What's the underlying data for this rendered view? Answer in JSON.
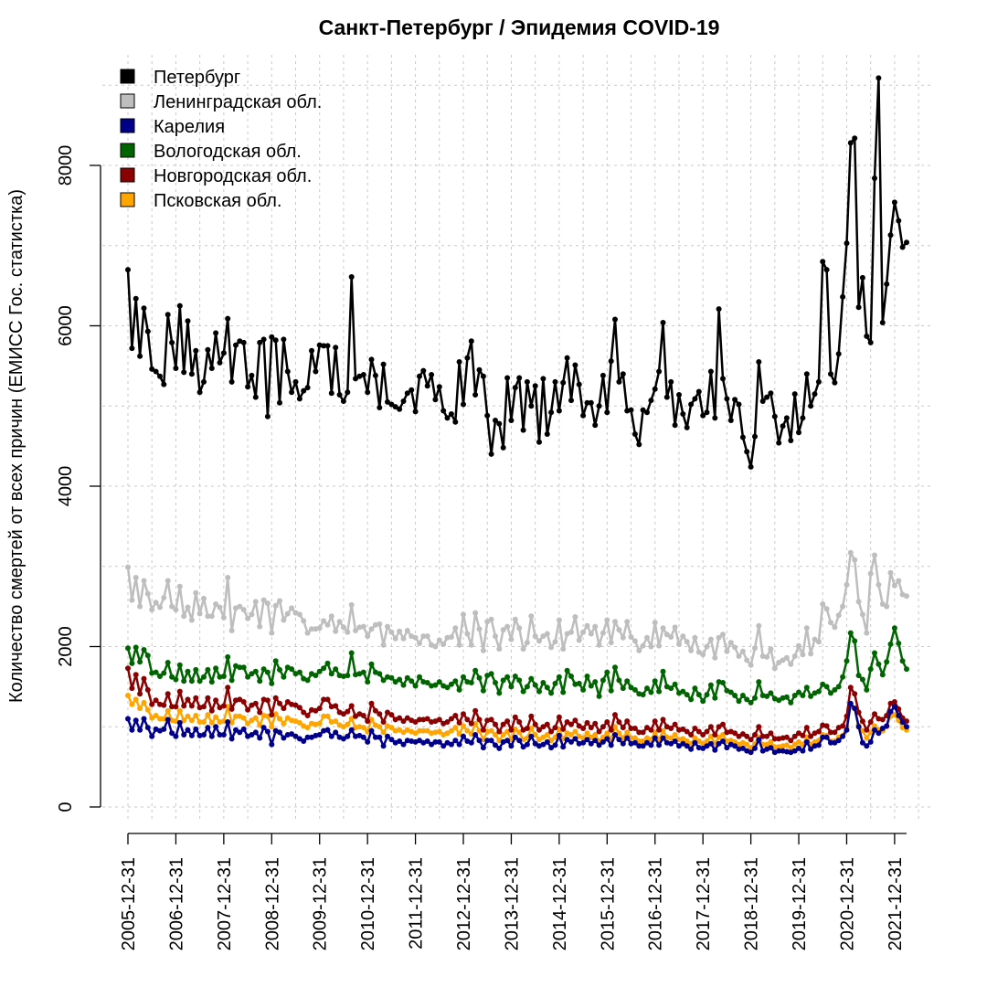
{
  "chart_data": {
    "type": "line",
    "title": "Санкт-Петербург / Эпидемия COVID-19",
    "ylabel": "Количество смертей от всех причин (ЕМИСС Гос. статистка)",
    "xlabel": "",
    "x_start": "2006-01",
    "x_end": "2022-04",
    "ylim": [
      0,
      9200
    ],
    "y_ticks": [
      0,
      2000,
      4000,
      6000,
      8000
    ],
    "x_tick_labels": [
      "2005-12-31",
      "2006-12-31",
      "2007-12-31",
      "2008-12-31",
      "2009-12-31",
      "2010-12-31",
      "2011-12-31",
      "2012-12-31",
      "2013-12-31",
      "2014-12-31",
      "2015-12-31",
      "2016-12-31",
      "2017-12-31",
      "2018-12-31",
      "2019-12-31",
      "2020-12-31",
      "2021-12-31"
    ],
    "grid": true,
    "legend_position": "top-left",
    "series": [
      {
        "name": "Петербург",
        "color": "#000000",
        "values": [
          6700,
          5720,
          6340,
          5620,
          6220,
          5930,
          5460,
          5430,
          5370,
          5270,
          6140,
          5790,
          5470,
          6250,
          5420,
          6060,
          5400,
          5690,
          5170,
          5300,
          5700,
          5470,
          5910,
          5540,
          5660,
          6090,
          5300,
          5760,
          5810,
          5790,
          5240,
          5380,
          5110,
          5790,
          5830,
          4870,
          5860,
          5820,
          5040,
          5830,
          5430,
          5170,
          5300,
          5090,
          5190,
          5230,
          5690,
          5430,
          5760,
          5750,
          5750,
          5160,
          5730,
          5140,
          5060,
          5170,
          6610,
          5340,
          5370,
          5390,
          5170,
          5580,
          5380,
          4980,
          5520,
          5050,
          5020,
          4990,
          4960,
          5060,
          5160,
          5200,
          4930,
          5370,
          5440,
          5250,
          5390,
          5080,
          5240,
          4940,
          4850,
          4900,
          4800,
          5550,
          5020,
          5600,
          5810,
          5140,
          5450,
          5370,
          4880,
          4400,
          4820,
          4780,
          4480,
          5350,
          4820,
          5230,
          5350,
          4700,
          5300,
          5000,
          5250,
          4550,
          5340,
          4650,
          4920,
          5300,
          4940,
          5290,
          5600,
          5070,
          5510,
          5270,
          4880,
          5040,
          5040,
          4760,
          5000,
          5380,
          4920,
          5560,
          6080,
          5300,
          5400,
          4940,
          4950,
          4650,
          4520,
          4950,
          4920,
          5070,
          5210,
          5430,
          6040,
          5110,
          5300,
          4760,
          5140,
          4900,
          4730,
          5020,
          5090,
          5180,
          4880,
          4920,
          5430,
          4850,
          6210,
          5340,
          5090,
          4820,
          5080,
          5020,
          4610,
          4430,
          4240,
          4620,
          5550,
          5060,
          5110,
          5160,
          4870,
          4540,
          4750,
          4850,
          4570,
          5150,
          4670,
          4850,
          5400,
          5000,
          5150,
          5300,
          6800,
          6700,
          5400,
          5290,
          5650,
          6360,
          7030,
          8280,
          8340,
          6230,
          6600,
          5870,
          5790,
          7840,
          9090,
          6040,
          6520,
          7130,
          7540,
          7310,
          6980,
          7040
        ]
      },
      {
        "name": "Ленинградская обл.",
        "color": "#bebebe",
        "values": [
          2990,
          2580,
          2860,
          2500,
          2820,
          2660,
          2460,
          2550,
          2490,
          2610,
          2820,
          2500,
          2460,
          2750,
          2380,
          2490,
          2330,
          2670,
          2410,
          2600,
          2380,
          2380,
          2530,
          2490,
          2360,
          2860,
          2200,
          2480,
          2500,
          2460,
          2350,
          2400,
          2560,
          2250,
          2580,
          2540,
          2170,
          2510,
          2570,
          2330,
          2410,
          2480,
          2420,
          2400,
          2320,
          2170,
          2220,
          2220,
          2230,
          2320,
          2270,
          2380,
          2190,
          2310,
          2240,
          2180,
          2520,
          2200,
          2240,
          2250,
          2130,
          2220,
          2270,
          2280,
          2020,
          2250,
          2180,
          2100,
          2190,
          2100,
          2200,
          2130,
          2110,
          2040,
          2130,
          2130,
          2020,
          2000,
          2080,
          2030,
          2110,
          2120,
          2230,
          2020,
          2400,
          2160,
          2020,
          2420,
          2220,
          1950,
          2310,
          2340,
          2130,
          1970,
          2210,
          2250,
          2090,
          2340,
          2230,
          1970,
          2050,
          2380,
          2130,
          2070,
          2130,
          2160,
          1990,
          2060,
          2330,
          1970,
          2160,
          2180,
          2370,
          2080,
          2180,
          2260,
          2160,
          2250,
          2020,
          2170,
          2330,
          2050,
          2310,
          2210,
          2110,
          2310,
          2120,
          2070,
          1950,
          2010,
          2110,
          2000,
          2300,
          2010,
          2230,
          2150,
          2120,
          2240,
          2030,
          2130,
          2060,
          1950,
          2110,
          1930,
          1900,
          2000,
          2090,
          1860,
          2110,
          2150,
          1940,
          2050,
          1990,
          1880,
          1940,
          1830,
          1770,
          1980,
          2260,
          1880,
          1870,
          1970,
          1730,
          1800,
          1830,
          1860,
          1780,
          1880,
          2010,
          1900,
          2230,
          1910,
          2090,
          2060,
          2530,
          2470,
          2300,
          2240,
          2390,
          2500,
          2770,
          3170,
          3080,
          2560,
          2400,
          2170,
          2910,
          3140,
          2770,
          2530,
          2500,
          2920,
          2760,
          2820,
          2650,
          2630
        ]
      },
      {
        "name": "Карелия",
        "color": "#00008b",
        "values": [
          1100,
          960,
          1080,
          960,
          1100,
          990,
          880,
          970,
          950,
          970,
          1090,
          920,
          880,
          1050,
          900,
          960,
          890,
          970,
          890,
          900,
          990,
          880,
          1000,
          900,
          900,
          1060,
          850,
          960,
          930,
          970,
          880,
          900,
          930,
          860,
          990,
          940,
          780,
          950,
          930,
          860,
          900,
          910,
          880,
          850,
          820,
          870,
          870,
          890,
          900,
          950,
          960,
          880,
          930,
          870,
          850,
          880,
          960,
          880,
          890,
          870,
          810,
          950,
          870,
          870,
          760,
          880,
          840,
          800,
          820,
          780,
          830,
          820,
          810,
          830,
          800,
          820,
          780,
          810,
          810,
          760,
          800,
          780,
          830,
          780,
          880,
          820,
          800,
          900,
          830,
          740,
          830,
          830,
          770,
          730,
          810,
          830,
          760,
          870,
          830,
          750,
          780,
          880,
          790,
          760,
          780,
          810,
          740,
          770,
          890,
          750,
          840,
          810,
          850,
          790,
          800,
          840,
          790,
          830,
          770,
          810,
          850,
          770,
          900,
          840,
          790,
          860,
          790,
          800,
          760,
          760,
          800,
          770,
          860,
          770,
          860,
          800,
          790,
          820,
          760,
          790,
          760,
          720,
          800,
          740,
          730,
          760,
          790,
          710,
          790,
          820,
          740,
          780,
          760,
          720,
          730,
          700,
          680,
          730,
          840,
          700,
          720,
          740,
          680,
          700,
          700,
          690,
          680,
          700,
          730,
          700,
          810,
          720,
          760,
          770,
          870,
          870,
          800,
          800,
          830,
          880,
          960,
          1290,
          1230,
          1000,
          800,
          760,
          810,
          960,
          920,
          980,
          1010,
          1190,
          1250,
          1140,
          1060,
          1000
        ]
      },
      {
        "name": "Вологодская обл.",
        "color": "#006400",
        "values": [
          1980,
          1790,
          1990,
          1810,
          1960,
          1890,
          1670,
          1680,
          1630,
          1670,
          1800,
          1620,
          1590,
          1770,
          1570,
          1690,
          1570,
          1710,
          1570,
          1620,
          1710,
          1560,
          1730,
          1620,
          1630,
          1870,
          1580,
          1760,
          1740,
          1740,
          1620,
          1660,
          1690,
          1570,
          1720,
          1680,
          1540,
          1820,
          1710,
          1620,
          1740,
          1720,
          1660,
          1680,
          1600,
          1580,
          1660,
          1640,
          1690,
          1730,
          1790,
          1660,
          1720,
          1640,
          1630,
          1640,
          1920,
          1650,
          1660,
          1680,
          1560,
          1780,
          1680,
          1660,
          1580,
          1620,
          1610,
          1560,
          1590,
          1520,
          1610,
          1570,
          1510,
          1620,
          1560,
          1550,
          1510,
          1520,
          1560,
          1510,
          1490,
          1530,
          1570,
          1460,
          1620,
          1560,
          1550,
          1700,
          1610,
          1450,
          1640,
          1660,
          1550,
          1420,
          1580,
          1620,
          1500,
          1630,
          1580,
          1440,
          1500,
          1600,
          1520,
          1440,
          1550,
          1490,
          1420,
          1540,
          1620,
          1430,
          1700,
          1630,
          1530,
          1540,
          1460,
          1630,
          1510,
          1560,
          1380,
          1580,
          1680,
          1450,
          1740,
          1580,
          1480,
          1570,
          1490,
          1460,
          1410,
          1400,
          1480,
          1430,
          1570,
          1440,
          1690,
          1500,
          1480,
          1530,
          1420,
          1440,
          1400,
          1340,
          1480,
          1400,
          1320,
          1400,
          1520,
          1360,
          1560,
          1550,
          1450,
          1430,
          1390,
          1320,
          1390,
          1340,
          1300,
          1360,
          1560,
          1390,
          1380,
          1420,
          1350,
          1330,
          1360,
          1370,
          1300,
          1390,
          1430,
          1390,
          1490,
          1380,
          1420,
          1440,
          1530,
          1500,
          1420,
          1460,
          1500,
          1620,
          1820,
          2170,
          2070,
          1640,
          1590,
          1460,
          1720,
          1920,
          1780,
          1650,
          1810,
          2030,
          2230,
          2040,
          1820,
          1720
        ]
      },
      {
        "name": "Новгородская обл.",
        "color": "#8b0000",
        "values": [
          1730,
          1480,
          1650,
          1410,
          1600,
          1460,
          1280,
          1330,
          1280,
          1270,
          1410,
          1250,
          1250,
          1440,
          1260,
          1340,
          1260,
          1360,
          1240,
          1250,
          1360,
          1200,
          1330,
          1240,
          1260,
          1490,
          1220,
          1330,
          1340,
          1310,
          1210,
          1270,
          1290,
          1180,
          1340,
          1330,
          1150,
          1360,
          1290,
          1230,
          1310,
          1280,
          1270,
          1240,
          1180,
          1140,
          1210,
          1200,
          1230,
          1340,
          1340,
          1250,
          1260,
          1180,
          1160,
          1190,
          1260,
          1130,
          1160,
          1140,
          1070,
          1290,
          1200,
          1160,
          1060,
          1180,
          1150,
          1090,
          1110,
          1070,
          1110,
          1080,
          1060,
          1090,
          1090,
          1100,
          1060,
          1070,
          1090,
          1040,
          1060,
          1100,
          1140,
          1050,
          1160,
          1090,
          1040,
          1200,
          1090,
          960,
          1080,
          1090,
          1030,
          940,
          1030,
          1070,
          960,
          1120,
          1060,
          960,
          980,
          1130,
          1030,
          960,
          1000,
          1030,
          940,
          990,
          1120,
          970,
          1060,
          1030,
          1080,
          1010,
          980,
          1050,
          990,
          1040,
          940,
          1000,
          1060,
          960,
          1150,
          1060,
          990,
          1070,
          980,
          980,
          930,
          930,
          990,
          960,
          1070,
          960,
          1090,
          1000,
          980,
          1030,
          960,
          970,
          940,
          900,
          980,
          940,
          900,
          940,
          1000,
          900,
          1000,
          1030,
          930,
          940,
          920,
          880,
          910,
          880,
          840,
          900,
          1000,
          880,
          880,
          920,
          850,
          850,
          860,
          870,
          830,
          880,
          920,
          890,
          990,
          880,
          920,
          940,
          1020,
          1010,
          930,
          930,
          990,
          1010,
          1130,
          1490,
          1410,
          1180,
          1070,
          960,
          1060,
          1160,
          1100,
          1090,
          1140,
          1290,
          1310,
          1220,
          1110,
          1070
        ]
      },
      {
        "name": "Псковская обл.",
        "color": "#ffa500",
        "values": [
          1390,
          1280,
          1340,
          1230,
          1300,
          1210,
          1110,
          1140,
          1100,
          1100,
          1200,
          1080,
          1070,
          1200,
          1080,
          1130,
          1080,
          1140,
          1060,
          1060,
          1150,
          1050,
          1120,
          1060,
          1070,
          1250,
          1050,
          1130,
          1130,
          1110,
          1040,
          1080,
          1110,
          1020,
          1140,
          1130,
          1000,
          1160,
          1100,
          1040,
          1110,
          1080,
          1070,
          1050,
          1010,
          990,
          1040,
          1030,
          1040,
          1130,
          1130,
          1060,
          1070,
          1020,
          1000,
          1030,
          1100,
          990,
          1000,
          990,
          940,
          1090,
          1020,
          1000,
          930,
          1010,
          990,
          950,
          960,
          930,
          960,
          940,
          920,
          950,
          950,
          950,
          920,
          930,
          940,
          900,
          920,
          950,
          990,
          910,
          1010,
          950,
          910,
          1040,
          950,
          840,
          940,
          950,
          900,
          830,
          900,
          940,
          840,
          970,
          930,
          840,
          860,
          980,
          900,
          840,
          870,
          900,
          830,
          870,
          970,
          850,
          920,
          900,
          940,
          880,
          860,
          920,
          870,
          900,
          820,
          870,
          920,
          840,
          1000,
          920,
          860,
          930,
          860,
          860,
          820,
          820,
          860,
          840,
          930,
          840,
          950,
          870,
          860,
          900,
          840,
          850,
          820,
          790,
          860,
          820,
          790,
          820,
          880,
          790,
          870,
          900,
          820,
          830,
          810,
          780,
          800,
          780,
          740,
          790,
          870,
          780,
          780,
          810,
          750,
          750,
          760,
          770,
          740,
          780,
          810,
          780,
          870,
          780,
          810,
          830,
          900,
          890,
          820,
          820,
          870,
          890,
          1000,
          1260,
          1230,
          1020,
          950,
          860,
          930,
          1010,
          960,
          950,
          1000,
          1130,
          1150,
          1080,
          990,
          960
        ]
      }
    ]
  }
}
